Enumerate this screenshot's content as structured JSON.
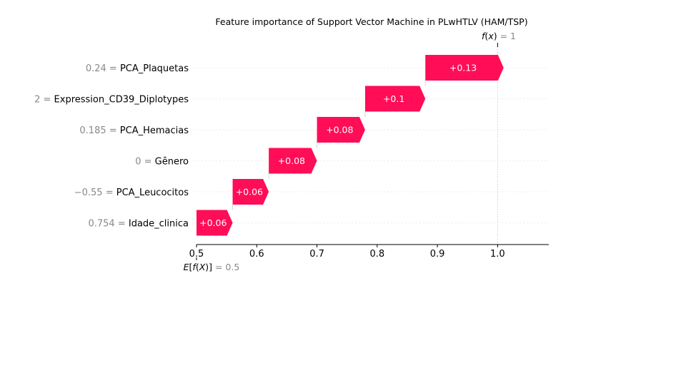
{
  "chart_data": {
    "type": "waterfall",
    "title": "Feature importance of Support Vector Machine in PLwHTLV (HAM/TSP)",
    "base_value": 0.5,
    "base_value_label": "0.5",
    "output_value": 1,
    "output_value_label": "1",
    "xlim": [
      0.5,
      1.085
    ],
    "xticks": [
      0.5,
      0.6,
      0.7,
      0.8,
      0.9,
      1.0
    ],
    "xtick_labels": [
      "0.5",
      "0.6",
      "0.7",
      "0.8",
      "0.9",
      "1.0"
    ],
    "features": [
      {
        "value": "0.24",
        "name": "PCA_Plaquetas",
        "contribution": 0.13,
        "label": "+0.13"
      },
      {
        "value": "2",
        "name": "Expression_CD39_Diplotypes",
        "contribution": 0.1,
        "label": "+0.1"
      },
      {
        "value": "0.185",
        "name": "PCA_Hemacias",
        "contribution": 0.08,
        "label": "+0.08"
      },
      {
        "value": "0",
        "name": "Gênero",
        "contribution": 0.08,
        "label": "+0.08"
      },
      {
        "value": "−0.55",
        "name": "PCA_Leucocitos",
        "contribution": 0.06,
        "label": "+0.06"
      },
      {
        "value": "0.754",
        "name": "Idade_clinica",
        "contribution": 0.06,
        "label": "+0.06"
      }
    ],
    "colors": {
      "positive": "#ff0d57",
      "text_muted": "#888888",
      "axis": "#000000"
    }
  }
}
